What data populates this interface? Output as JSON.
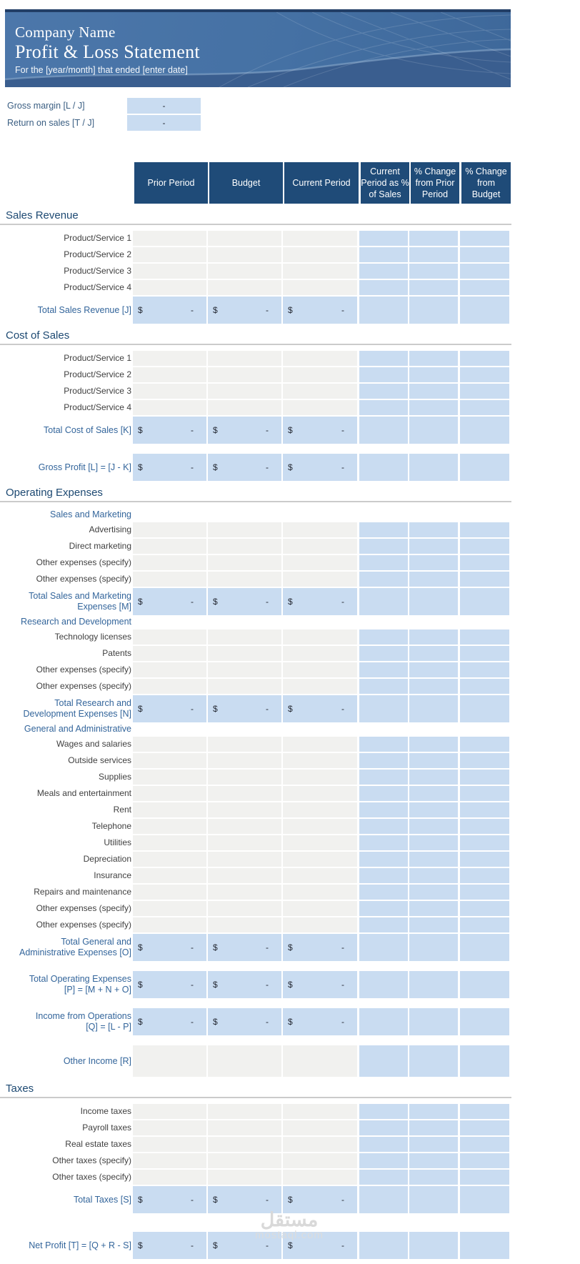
{
  "banner": {
    "company_name": "Company Name",
    "title": "Profit & Loss Statement",
    "subtitle": "For the [year/month] that ended [enter date]"
  },
  "metrics": [
    {
      "label": "Gross margin  [L / J]",
      "value": "-"
    },
    {
      "label": "Return on sales  [T / J]",
      "value": "-"
    }
  ],
  "table": {
    "columns": [
      "Prior Period",
      "Budget",
      "Current Period",
      "Current\nPeriod as %\nof Sales",
      "% Change\nfrom Prior\nPeriod",
      "% Change\nfrom\nBudget"
    ],
    "cell_symbols": {
      "dollar": "$",
      "empty_value": "-"
    }
  },
  "sections": [
    {
      "title": "Sales Revenue",
      "rows": [
        {
          "type": "input",
          "label": "Product/Service 1"
        },
        {
          "type": "input",
          "label": "Product/Service 2"
        },
        {
          "type": "input",
          "label": "Product/Service 3"
        },
        {
          "type": "input",
          "label": "Product/Service 4"
        },
        {
          "type": "total",
          "label": "Total Sales Revenue  [J]"
        }
      ]
    },
    {
      "title": "Cost of Sales",
      "rows": [
        {
          "type": "input",
          "label": "Product/Service 1"
        },
        {
          "type": "input",
          "label": "Product/Service 2"
        },
        {
          "type": "input",
          "label": "Product/Service 3"
        },
        {
          "type": "input",
          "label": "Product/Service 4"
        },
        {
          "type": "total",
          "label": "Total Cost of Sales  [K]"
        },
        {
          "type": "spacer",
          "h": 14
        },
        {
          "type": "total",
          "label": "Gross Profit [L] = [J - K]"
        }
      ]
    },
    {
      "title": "Operating Expenses",
      "rows": [
        {
          "type": "subhead",
          "label": "Sales and Marketing"
        },
        {
          "type": "input",
          "label": "Advertising"
        },
        {
          "type": "input",
          "label": "Direct marketing"
        },
        {
          "type": "input",
          "label": "Other expenses (specify)"
        },
        {
          "type": "input",
          "label": "Other expenses (specify)"
        },
        {
          "type": "total",
          "label": "Total Sales and Marketing\nExpenses  [M]"
        },
        {
          "type": "subhead",
          "label": "Research and Development"
        },
        {
          "type": "input",
          "label": "Technology licenses"
        },
        {
          "type": "input",
          "label": "Patents"
        },
        {
          "type": "input",
          "label": "Other expenses (specify)"
        },
        {
          "type": "input",
          "label": "Other expenses (specify)"
        },
        {
          "type": "total",
          "label": "Total Research and\nDevelopment Expenses  [N]"
        },
        {
          "type": "subhead",
          "label": "General and Administrative"
        },
        {
          "type": "input",
          "label": "Wages and salaries"
        },
        {
          "type": "input",
          "label": "Outside services"
        },
        {
          "type": "input",
          "label": "Supplies"
        },
        {
          "type": "input",
          "label": "Meals and entertainment"
        },
        {
          "type": "input",
          "label": "Rent"
        },
        {
          "type": "input",
          "label": "Telephone"
        },
        {
          "type": "input",
          "label": "Utilities"
        },
        {
          "type": "input",
          "label": "Depreciation"
        },
        {
          "type": "input",
          "label": "Insurance"
        },
        {
          "type": "input",
          "label": "Repairs and maintenance"
        },
        {
          "type": "input",
          "label": "Other expenses (specify)"
        },
        {
          "type": "input",
          "label": "Other expenses (specify)"
        },
        {
          "type": "total",
          "label": "Total General and\nAdministrative Expenses  [O]"
        },
        {
          "type": "spacer",
          "h": 14
        },
        {
          "type": "total",
          "label": "Total Operating Expenses\n[P] = [M + N + O]"
        },
        {
          "type": "spacer",
          "h": 14
        },
        {
          "type": "total",
          "label": "Income from Operations\n[Q] = [L - P]"
        },
        {
          "type": "spacer",
          "h": 14
        },
        {
          "type": "other",
          "label": "Other Income  [R]"
        }
      ]
    },
    {
      "title": "Taxes",
      "rows": [
        {
          "type": "input",
          "label": "Income taxes"
        },
        {
          "type": "input",
          "label": "Payroll taxes"
        },
        {
          "type": "input",
          "label": "Real estate taxes"
        },
        {
          "type": "input",
          "label": "Other taxes (specify)"
        },
        {
          "type": "input",
          "label": "Other taxes (specify)"
        },
        {
          "type": "total",
          "label": "Total Taxes  [S]"
        },
        {
          "type": "spacer",
          "h": 26
        },
        {
          "type": "total",
          "label": "Net Profit  [T] = [Q + R - S]"
        }
      ]
    }
  ],
  "watermark": {
    "logo": "مستقل",
    "domain": "mostaql.com"
  },
  "colors": {
    "header_bg": "#1F4B78",
    "cell_blue": "#C9DCF1",
    "cell_gray": "#F1F1EF",
    "banner_blue": "#4571A4",
    "banner_dark_wave": "#3A5E8F",
    "top_strip": "#223E66",
    "section_title_text": "#1D4972",
    "accent_label_blue": "#33659B",
    "row_label_text": "#3F3F3F",
    "section_rule": "#CBCBCB",
    "watermark_text": "#D8D8D8"
  }
}
